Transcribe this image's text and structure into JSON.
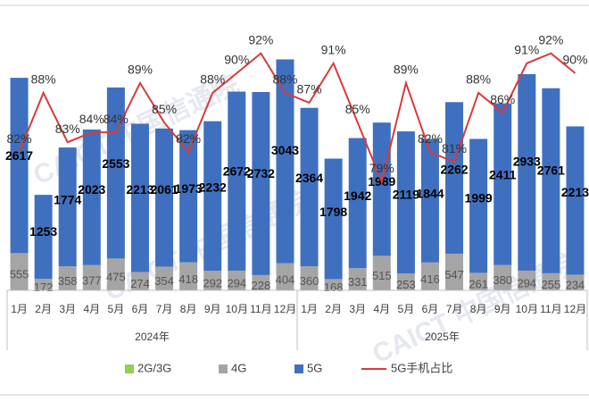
{
  "chart_data": {
    "type": "stacked_bar_line",
    "categories": [
      "1月",
      "2月",
      "3月",
      "4月",
      "5月",
      "6月",
      "7月",
      "8月",
      "9月",
      "10月",
      "11月",
      "12月",
      "1月",
      "2月",
      "3月",
      "4月",
      "5月",
      "6月",
      "7月",
      "8月",
      "9月",
      "10月",
      "11月",
      "12月"
    ],
    "groups": [
      "2024年",
      "2025年"
    ],
    "series": [
      {
        "name": "2G/3G",
        "color": "#92d050",
        "values": [
          0,
          0,
          0,
          0,
          0,
          0,
          0,
          0,
          0,
          0,
          0,
          0,
          0,
          0,
          0,
          0,
          0,
          0,
          0,
          0,
          0,
          0,
          0,
          0
        ]
      },
      {
        "name": "4G",
        "color": "#a5a5a5",
        "values": [
          555,
          172,
          358,
          377,
          475,
          274,
          354,
          418,
          292,
          294,
          228,
          404,
          360,
          168,
          331,
          515,
          253,
          416,
          547,
          261,
          380,
          294,
          255,
          234
        ]
      },
      {
        "name": "5G",
        "color": "#3f70bf",
        "values": [
          2617,
          1253,
          1774,
          2023,
          2553,
          2213,
          2061,
          1973,
          2232,
          2672,
          2732,
          3043,
          2364,
          1798,
          1942,
          1989,
          2119,
          1844,
          2262,
          1999,
          2411,
          2933,
          2761,
          2213
        ]
      },
      {
        "name": "5G手机占比",
        "color": "#d93a3a",
        "axis": "y2",
        "values": [
          82,
          88,
          83,
          84,
          84,
          89,
          85,
          82,
          88,
          90,
          92,
          88,
          87,
          91,
          85,
          79,
          89,
          82,
          81,
          88,
          86,
          91,
          92,
          90
        ],
        "value_labels": [
          "82%",
          "88%",
          "83%",
          "84%",
          "84%",
          "89%",
          "85%",
          "82%",
          "88%",
          "90%",
          "92%",
          "88%",
          "87%",
          "91%",
          "85%",
          "79%",
          "89%",
          "82%",
          "81%",
          "88%",
          "86%",
          "91%",
          "92%",
          "90%"
        ]
      }
    ],
    "ylim": [
      0,
      4200
    ],
    "y2lim": [
      68,
      96.5
    ],
    "legend": "bottom",
    "watermark": "CAICT 中国信通院"
  }
}
